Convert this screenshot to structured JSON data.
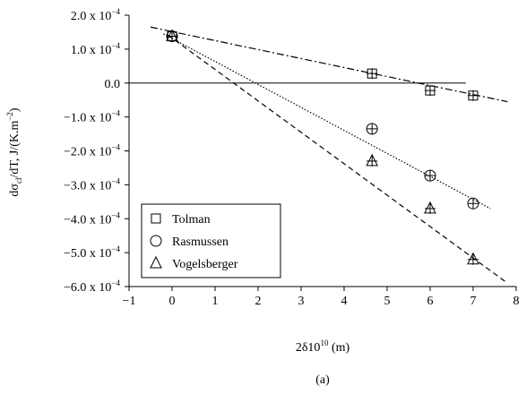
{
  "chart_data": {
    "type": "scatter",
    "x": [
      0,
      4.65,
      6,
      7
    ],
    "series": [
      {
        "name": "Tolman",
        "marker": "square",
        "color": "#000000",
        "values": [
          0.000138,
          2.8e-05,
          -2.2e-05,
          -3.7e-05
        ],
        "fit": {
          "style": "dash-dot",
          "x": [
            -0.5,
            7.8
          ],
          "y": [
            0.000165,
            -5.5e-05
          ]
        }
      },
      {
        "name": "Rasmussen",
        "marker": "circle",
        "color": "#000000",
        "values": [
          0.000138,
          -0.000135,
          -0.000273,
          -0.000355
        ],
        "fit": {
          "style": "dotted",
          "x": [
            -0.2,
            7.4
          ],
          "y": [
            0.000145,
            -0.00037
          ]
        }
      },
      {
        "name": "Vogelsberger",
        "marker": "triangle",
        "color": "#000000",
        "values": [
          0.000138,
          -0.00023,
          -0.00037,
          -0.00052
        ],
        "fit": {
          "style": "dashed",
          "x": [
            -0.1,
            7.8
          ],
          "y": [
            0.000142,
            -0.00059
          ]
        }
      }
    ],
    "xlim": [
      -1,
      8
    ],
    "xticks": [
      {
        "value": -1,
        "label": "−1"
      },
      0,
      1,
      2,
      3,
      4,
      5,
      6,
      7,
      8
    ],
    "ylim": [
      -0.0006,
      0.0002
    ],
    "yticks": [
      {
        "value": 0.0002,
        "label": "2.0 x 10",
        "exponent": "−4"
      },
      {
        "value": 0.0001,
        "label": "1.0 x 10",
        "exponent": "−4"
      },
      {
        "value": 0,
        "label": "0.0"
      },
      {
        "value": -0.0001,
        "label": "−1.0 x 10",
        "exponent": "−4"
      },
      {
        "value": -0.0002,
        "label": "−2.0 x 10",
        "exponent": "−4"
      },
      {
        "value": -0.0003,
        "label": "−3.0 x 10",
        "exponent": "−4"
      },
      {
        "value": -0.0004,
        "label": "−4.0 x 10",
        "exponent": "−4"
      },
      {
        "value": -0.0005,
        "label": "−5.0 x 10",
        "exponent": "−4"
      },
      {
        "value": -0.0006,
        "label": "−6.0 x 10",
        "exponent": "−4"
      }
    ],
    "x_label": {
      "text": "2δ10",
      "sup": "10",
      "rest": " (m)"
    },
    "y_label": {
      "text": "dσ",
      "sub": "cl",
      "mid": "/dT, J/(K.m",
      "sup": "−2",
      "end": ")"
    },
    "caption": "(a)",
    "legend": "lower left",
    "grid": false
  }
}
